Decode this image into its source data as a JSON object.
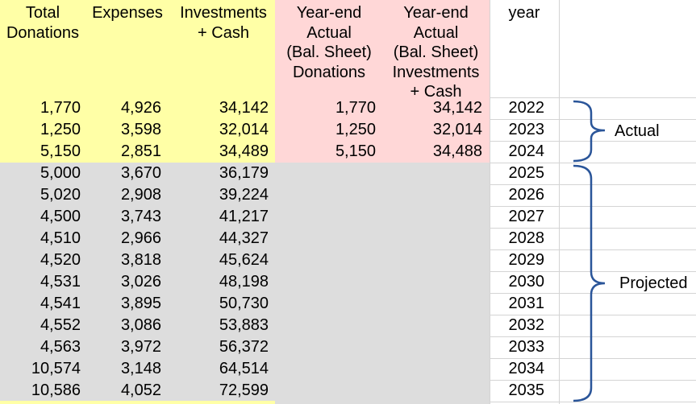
{
  "headers": {
    "total_donations": "Total\nDonations",
    "expenses": "Expenses",
    "investments_cash": "Investments\n+ Cash",
    "ye_donations": "Year-end\nActual\n(Bal. Sheet)\nDonations",
    "ye_investments": "Year-end\nActual\n(Bal. Sheet)\nInvestments\n+ Cash",
    "year": "year"
  },
  "rows": [
    {
      "donations": "1,770",
      "expenses": "4,926",
      "investments": "34,142",
      "ye_donations": "1,770",
      "ye_investments": "34,142",
      "year": "2022"
    },
    {
      "donations": "1,250",
      "expenses": "3,598",
      "investments": "32,014",
      "ye_donations": "1,250",
      "ye_investments": "32,014",
      "year": "2023"
    },
    {
      "donations": "5,150",
      "expenses": "2,851",
      "investments": "34,489",
      "ye_donations": "5,150",
      "ye_investments": "34,488",
      "year": "2024"
    },
    {
      "donations": "5,000",
      "expenses": "3,670",
      "investments": "36,179",
      "ye_donations": "",
      "ye_investments": "",
      "year": "2025"
    },
    {
      "donations": "5,020",
      "expenses": "2,908",
      "investments": "39,224",
      "ye_donations": "",
      "ye_investments": "",
      "year": "2026"
    },
    {
      "donations": "4,500",
      "expenses": "3,743",
      "investments": "41,217",
      "ye_donations": "",
      "ye_investments": "",
      "year": "2027"
    },
    {
      "donations": "4,510",
      "expenses": "2,966",
      "investments": "44,327",
      "ye_donations": "",
      "ye_investments": "",
      "year": "2028"
    },
    {
      "donations": "4,520",
      "expenses": "3,818",
      "investments": "45,624",
      "ye_donations": "",
      "ye_investments": "",
      "year": "2029"
    },
    {
      "donations": "4,531",
      "expenses": "3,026",
      "investments": "48,198",
      "ye_donations": "",
      "ye_investments": "",
      "year": "2030"
    },
    {
      "donations": "4,541",
      "expenses": "3,895",
      "investments": "50,730",
      "ye_donations": "",
      "ye_investments": "",
      "year": "2031"
    },
    {
      "donations": "4,552",
      "expenses": "3,086",
      "investments": "53,883",
      "ye_donations": "",
      "ye_investments": "",
      "year": "2032"
    },
    {
      "donations": "4,563",
      "expenses": "3,972",
      "investments": "56,372",
      "ye_donations": "",
      "ye_investments": "",
      "year": "2033"
    },
    {
      "donations": "10,574",
      "expenses": "3,148",
      "investments": "64,514",
      "ye_donations": "",
      "ye_investments": "",
      "year": "2034"
    },
    {
      "donations": "10,586",
      "expenses": "4,052",
      "investments": "72,599",
      "ye_donations": "",
      "ye_investments": "",
      "year": "2035"
    }
  ],
  "brackets": {
    "actual": "Actual",
    "projected": "Projected"
  },
  "colors": {
    "yellow": "#ffffa6",
    "pink": "#ffd7d7",
    "gray": "#dddddd",
    "bracket": "#2a5599"
  }
}
